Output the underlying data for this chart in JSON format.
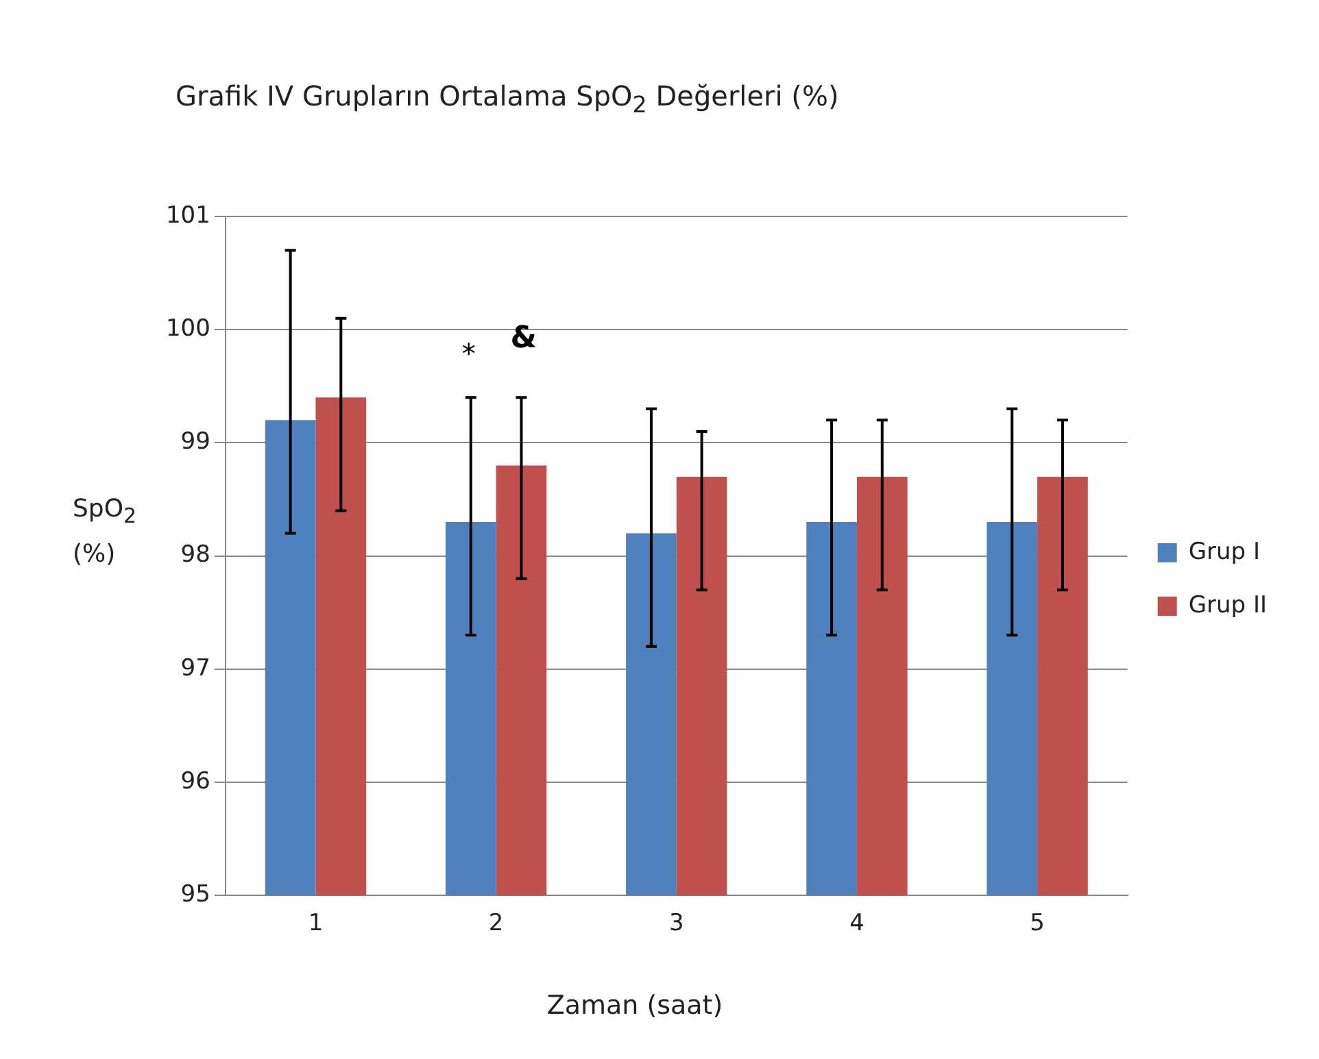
{
  "chart_data": {
    "type": "bar",
    "title": "Grafik IV Grupların Ortalama SpO$_{2}$ Değerleri (%)",
    "xlabel": "Zaman (saat)",
    "ylabel": "SpO$_{2}$ (%)",
    "categories": [
      "1",
      "2",
      "3",
      "4",
      "5"
    ],
    "series": [
      {
        "name": "Grup I",
        "color": "#4f81bd",
        "values": [
          99.2,
          98.3,
          98.2,
          98.3,
          98.3
        ],
        "errors": [
          [
            98.2,
            100.7
          ],
          [
            97.3,
            99.4
          ],
          [
            97.2,
            99.3
          ],
          [
            97.3,
            99.2
          ],
          [
            97.3,
            99.3
          ]
        ]
      },
      {
        "name": "Grup II",
        "color": "#c0504d",
        "values": [
          99.4,
          98.8,
          98.7,
          98.7,
          98.7
        ],
        "errors": [
          [
            98.4,
            100.1
          ],
          [
            97.8,
            99.4
          ],
          [
            97.7,
            99.1
          ],
          [
            97.7,
            99.2
          ],
          [
            97.7,
            99.2
          ]
        ]
      }
    ],
    "annotations": [
      "*",
      "&"
    ],
    "ylim": [
      95,
      101
    ],
    "yticks": [
      95,
      96,
      97,
      98,
      99,
      100,
      101
    ],
    "grid": "y",
    "legend": "right"
  }
}
